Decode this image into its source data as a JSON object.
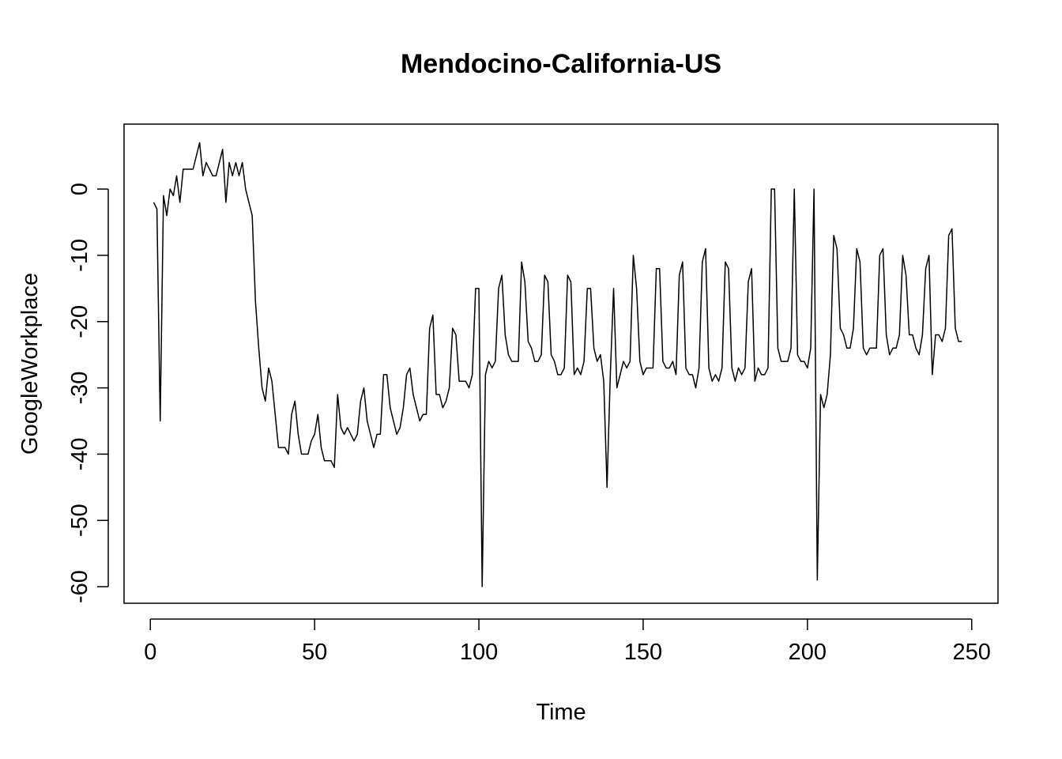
{
  "chart_data": {
    "type": "line",
    "title": "Mendocino-California-US",
    "xlabel": "Time",
    "ylabel": "GoogleWorkplace",
    "xlim": [
      -8,
      258
    ],
    "ylim": [
      -62.5,
      9.8
    ],
    "x_ticks": [
      0,
      50,
      100,
      150,
      200,
      250
    ],
    "y_ticks": [
      0,
      -10,
      -20,
      -30,
      -40,
      -50,
      -60
    ],
    "grid": false,
    "line_color": "#000000",
    "series": [
      {
        "values": [
          -2,
          -3,
          -35,
          -1,
          -4,
          0,
          -1,
          2,
          -2,
          3,
          3,
          3,
          3,
          5,
          7,
          2,
          4,
          3,
          2,
          2,
          4,
          6,
          -2,
          4,
          2,
          4,
          2,
          4,
          0,
          -2,
          -4,
          -17,
          -24,
          -30,
          -32,
          -27,
          -29,
          -34,
          -39,
          -39,
          -39,
          -40,
          -34,
          -32,
          -37,
          -40,
          -40,
          -40,
          -38,
          -37,
          -34,
          -39,
          -41,
          -41,
          -41,
          -42,
          -31,
          -36,
          -37,
          -36,
          -37,
          -38,
          -37,
          -32,
          -30,
          -35,
          -37,
          -39,
          -37,
          -37,
          -28,
          -28,
          -33,
          -35,
          -37,
          -36,
          -33,
          -28,
          -27,
          -31,
          -33,
          -35,
          -34,
          -34,
          -21,
          -19,
          -31,
          -31,
          -33,
          -32,
          -30,
          -21,
          -22,
          -29,
          -29,
          -29,
          -30,
          -28,
          -15,
          -15,
          -60,
          -28,
          -26,
          -27,
          -26,
          -15,
          -13,
          -22,
          -25,
          -26,
          -26,
          -26,
          -11,
          -14,
          -23,
          -24,
          -26,
          -26,
          -25,
          -13,
          -14,
          -25,
          -26,
          -28,
          -28,
          -27,
          -13,
          -14,
          -28,
          -27,
          -28,
          -26,
          -15,
          -15,
          -24,
          -26,
          -25,
          -29,
          -45,
          -28,
          -15,
          -30,
          -28,
          -26,
          -27,
          -26,
          -10,
          -15,
          -26,
          -28,
          -27,
          -27,
          -27,
          -12,
          -12,
          -26,
          -27,
          -27,
          -26,
          -28,
          -13,
          -11,
          -27,
          -28,
          -28,
          -30,
          -27,
          -11,
          -9,
          -27,
          -29,
          -28,
          -29,
          -27,
          -11,
          -12,
          -27,
          -29,
          -27,
          -28,
          -27,
          -14,
          -12,
          -29,
          -27,
          -28,
          -28,
          -27,
          0,
          0,
          -24,
          -26,
          -26,
          -26,
          -24,
          0,
          -25,
          -26,
          -26,
          -27,
          -24,
          0,
          -59,
          -31,
          -33,
          -31,
          -25,
          -7,
          -9,
          -21,
          -22,
          -24,
          -24,
          -21,
          -9,
          -11,
          -24,
          -25,
          -24,
          -24,
          -24,
          -10,
          -9,
          -22,
          -25,
          -24,
          -24,
          -22,
          -10,
          -13,
          -22,
          -22,
          -24,
          -25,
          -22,
          -12,
          -10,
          -28,
          -22,
          -22,
          -23,
          -21,
          -7,
          -6,
          -21,
          -23,
          -23
        ]
      }
    ]
  }
}
